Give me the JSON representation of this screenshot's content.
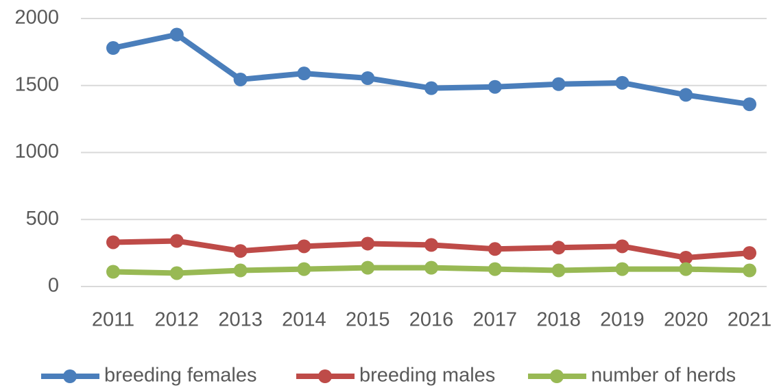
{
  "chart_data": {
    "type": "line",
    "categories": [
      "2011",
      "2012",
      "2013",
      "2014",
      "2015",
      "2016",
      "2017",
      "2018",
      "2019",
      "2020",
      "2021"
    ],
    "series": [
      {
        "name": "breeding females",
        "color": "#4a7ebb",
        "values": [
          1780,
          1880,
          1545,
          1590,
          1555,
          1480,
          1490,
          1510,
          1520,
          1430,
          1360
        ]
      },
      {
        "name": "breeding males",
        "color": "#be4b48",
        "values": [
          330,
          340,
          265,
          300,
          320,
          310,
          280,
          290,
          300,
          215,
          250
        ]
      },
      {
        "name": "number of herds",
        "color": "#98b954",
        "values": [
          110,
          100,
          120,
          130,
          140,
          140,
          130,
          120,
          130,
          130,
          120
        ]
      }
    ],
    "ylim": [
      0,
      2000
    ],
    "yticks": [
      0,
      500,
      1000,
      1500,
      2000
    ],
    "grid": true,
    "legend": "bottom"
  }
}
